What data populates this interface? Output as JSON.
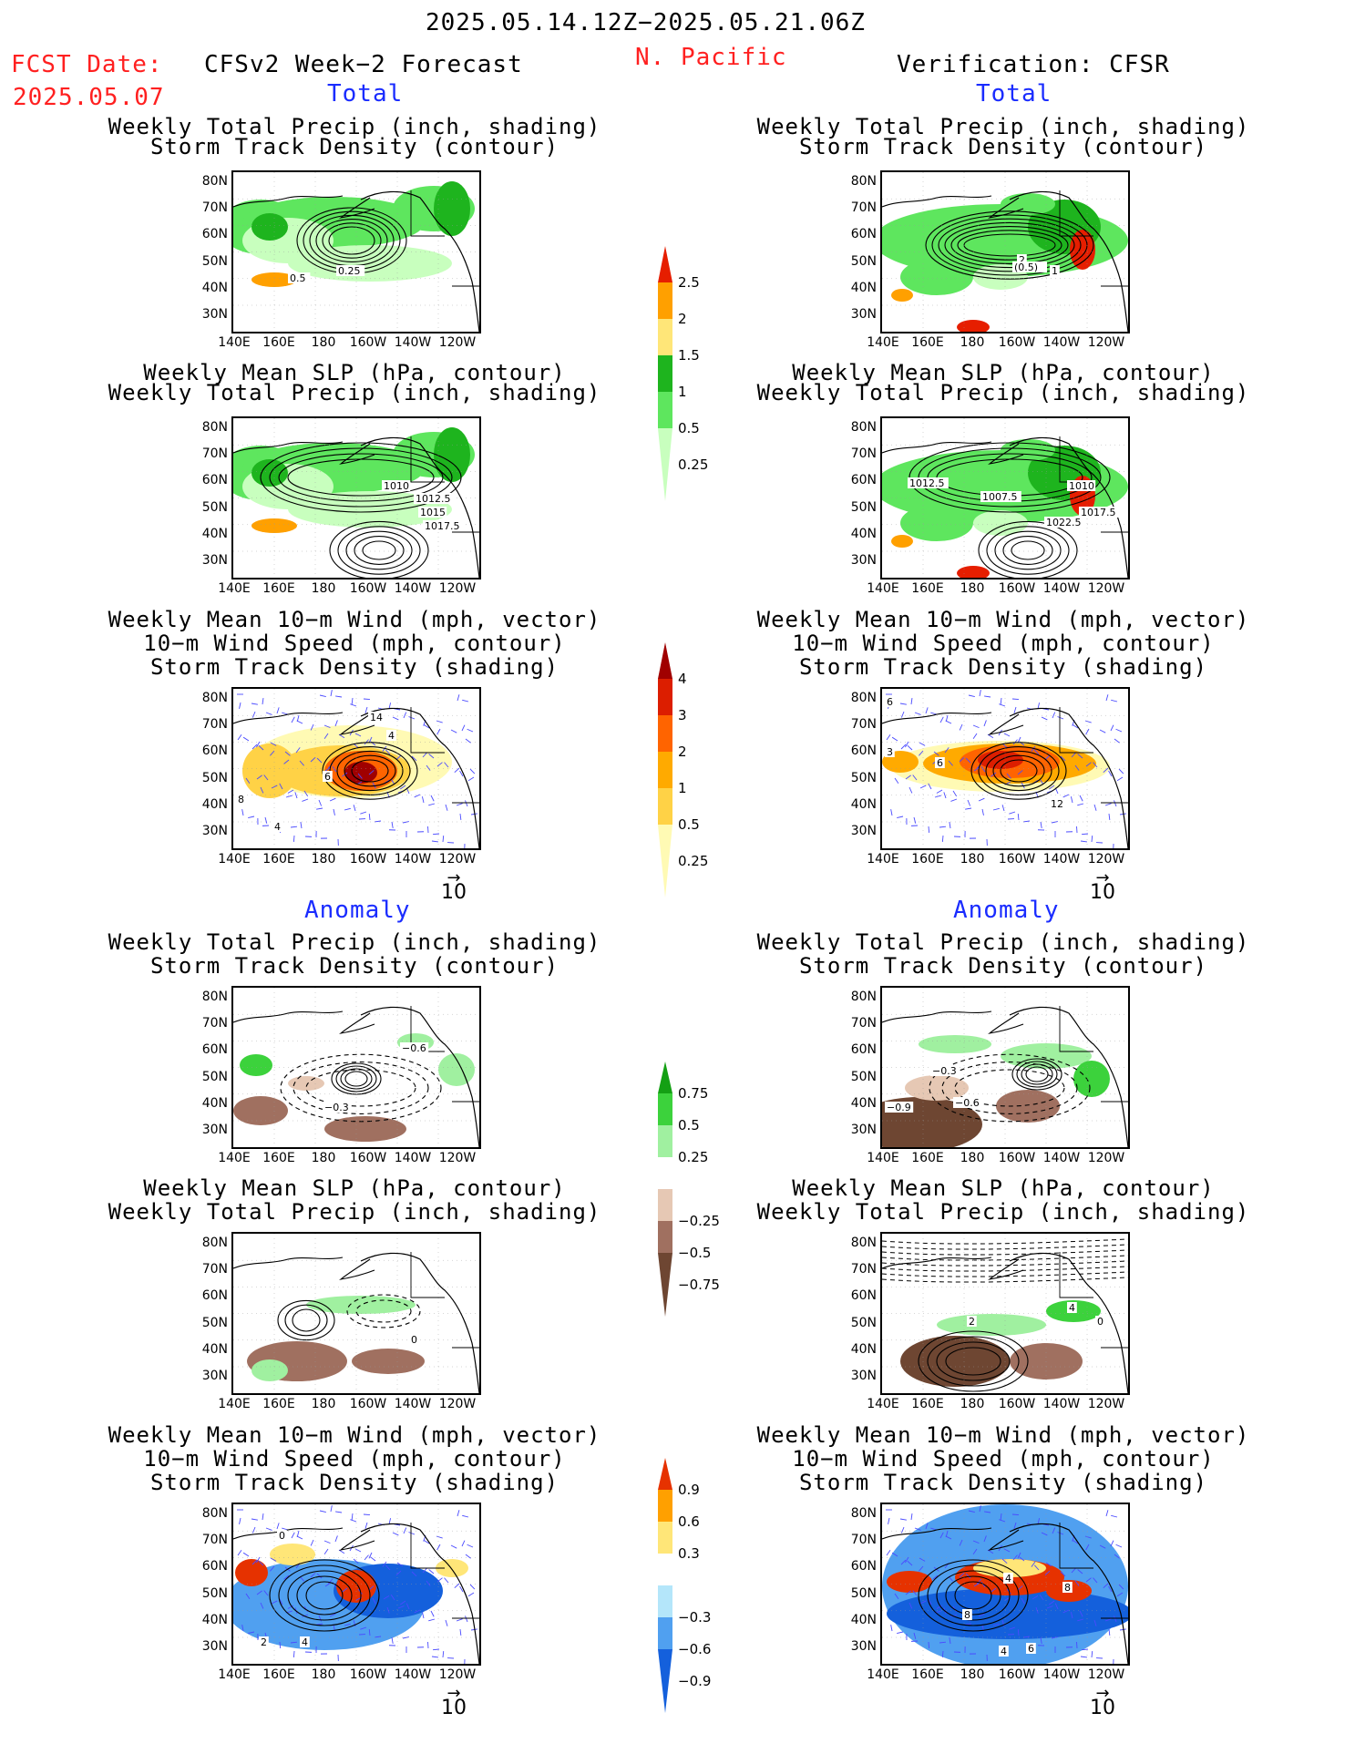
{
  "header": {
    "period": "2025.05.14.12Z−2025.05.21.06Z",
    "fcst_label": "FCST Date:",
    "fcst_date": "2025.05.07",
    "left_title": "CFSv2 Week−2 Forecast",
    "region": "N. Pacific",
    "right_title": "Verification: CFSR",
    "total_label": "Total",
    "anomaly_label": "Anomaly"
  },
  "axes": {
    "lat_ticks": [
      "80N",
      "70N",
      "60N",
      "50N",
      "40N",
      "30N"
    ],
    "lon_ticks": [
      "140E",
      "160E",
      "180",
      "160W",
      "140W",
      "120W"
    ]
  },
  "vector_ref": "10",
  "colors": {
    "precip_total": [
      "#c8ffbe",
      "#5ee65e",
      "#1eb41e",
      "#ffe678",
      "#ffa000",
      "#e61e00"
    ],
    "storm_total": [
      "#fffab4",
      "#ffd246",
      "#ffaa00",
      "#ff6400",
      "#dc1e00",
      "#a00000"
    ],
    "precip_anom": [
      "#6e4632",
      "#a07060",
      "#e6c8b4",
      "#ffffff",
      "#a0f0a0",
      "#3cd23c",
      "#14a014"
    ],
    "storm_anom": [
      "#1460dc",
      "#50a0f0",
      "#b4e6fa",
      "#ffffff",
      "#ffe678",
      "#ffa000",
      "#e63200"
    ]
  },
  "colorbars": [
    {
      "id": "precip_total",
      "labels": [
        "2.5",
        "2",
        "1.5",
        "1",
        "0.5",
        "0.25"
      ]
    },
    {
      "id": "storm_total",
      "labels": [
        "4",
        "3",
        "2",
        "1",
        "0.5",
        "0.25"
      ]
    },
    {
      "id": "precip_anom",
      "labels": [
        "0.75",
        "0.5",
        "0.25",
        "−0.25",
        "−0.5",
        "−0.75"
      ]
    },
    {
      "id": "storm_anom",
      "labels": [
        "0.9",
        "0.6",
        "0.3",
        "−0.3",
        "−0.6",
        "−0.9"
      ]
    }
  ],
  "panels": [
    {
      "title1": "Weekly Total Precip (inch, shading)",
      "title2": "Storm Track Density (contour)",
      "title3": "",
      "labels": [
        "0.5",
        "0.25"
      ]
    },
    {
      "title1": "Weekly Total Precip (inch, shading)",
      "title2": "Storm Track Density (contour)",
      "title3": "",
      "labels": [
        "2",
        "(0.5)",
        "1"
      ]
    },
    {
      "title1": "Weekly Mean SLP (hPa, contour)",
      "title2": "Weekly Total Precip (inch, shading)",
      "title3": "",
      "labels": [
        "1010",
        "1012.5",
        "1015",
        "1017.5"
      ]
    },
    {
      "title1": "Weekly Mean SLP (hPa, contour)",
      "title2": "Weekly Total Precip (inch, shading)",
      "title3": "",
      "labels": [
        "1012.5",
        "1007.5",
        "1010",
        "1017.5",
        "1022.5"
      ]
    },
    {
      "title1": "Weekly Mean 10−m Wind (mph, vector)",
      "title2": "10−m Wind Speed (mph, contour)",
      "title3": "Storm Track Density (shading)",
      "labels": [
        "4",
        "8",
        "4",
        "6",
        "14"
      ]
    },
    {
      "title1": "Weekly Mean 10−m Wind (mph, vector)",
      "title2": "10−m Wind Speed (mph, contour)",
      "title3": "Storm Track Density (shading)",
      "labels": [
        "6",
        "3",
        "6",
        "12"
      ]
    },
    {
      "title1": "Weekly Total Precip (inch, shading)",
      "title2": "Storm Track Density (contour)",
      "title3": "",
      "labels": [
        "−0.6",
        "−0.3"
      ]
    },
    {
      "title1": "Weekly Total Precip (inch, shading)",
      "title2": "Storm Track Density (contour)",
      "title3": "",
      "labels": [
        "−0.3",
        "−0.9",
        "−0.6"
      ]
    },
    {
      "title1": "Weekly Mean SLP (hPa, contour)",
      "title2": "Weekly Total Precip (inch, shading)",
      "title3": "",
      "labels": [
        "0"
      ]
    },
    {
      "title1": "Weekly Mean SLP (hPa, contour)",
      "title2": "Weekly Total Precip (inch, shading)",
      "title3": "",
      "labels": [
        "2",
        "4",
        "0"
      ]
    },
    {
      "title1": "Weekly Mean 10−m Wind (mph, vector)",
      "title2": "10−m Wind Speed (mph, contour)",
      "title3": "Storm Track Density (shading)",
      "labels": [
        "0",
        "2",
        "4"
      ]
    },
    {
      "title1": "Weekly Mean 10−m Wind (mph, vector)",
      "title2": "10−m Wind Speed (mph, contour)",
      "title3": "Storm Track Density (shading)",
      "labels": [
        "4",
        "8",
        "8",
        "4",
        "6"
      ]
    }
  ],
  "chart_data": {
    "type": "heatmap",
    "grid": true,
    "lat_range": [
      "25N",
      "85N"
    ],
    "lon_range": [
      "140E",
      "115W"
    ],
    "vectors": true
  }
}
